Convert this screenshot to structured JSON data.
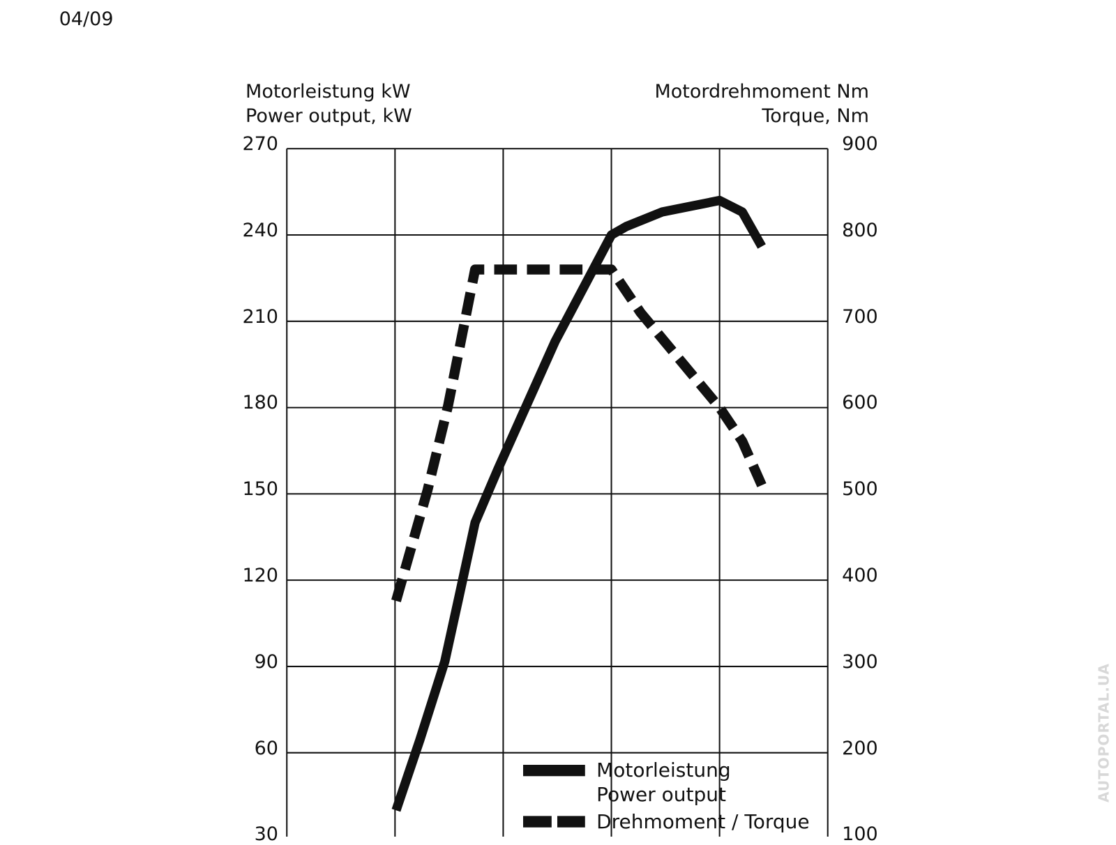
{
  "page_label": "04/09",
  "watermark": "AUTOPORTAL.UA",
  "chart_data": {
    "type": "line",
    "y_axis_title": "Motorleistung kW\nPower output, kW",
    "y2_axis_title": "Motordrehmoment Nm\nTorque, Nm",
    "xlim": [
      0,
      5
    ],
    "xticks": [
      0,
      1,
      2,
      3,
      4,
      5
    ],
    "ylim": [
      30,
      270
    ],
    "yticks": [
      30,
      60,
      90,
      120,
      150,
      180,
      210,
      240,
      270
    ],
    "y2lim": [
      100,
      900
    ],
    "y2ticks": [
      100,
      200,
      300,
      400,
      500,
      600,
      700,
      800,
      900
    ],
    "grid": true,
    "legend": "lower right",
    "series": [
      {
        "name": "Motorleistung\nPower output",
        "color": "#111111",
        "line_style": "solid",
        "axis": "y",
        "x": [
          1.01,
          1.23,
          1.46,
          1.59,
          1.74,
          1.95,
          2.48,
          3.0,
          3.14,
          3.47,
          4.0,
          4.21,
          4.39
        ],
        "values": [
          40,
          64.5,
          91.7,
          114,
          140,
          158.5,
          203,
          240,
          243,
          248,
          252,
          248,
          236
        ]
      },
      {
        "name": "Drehmoment / Torque",
        "color": "#111111",
        "line_style": "dashed",
        "axis": "y2",
        "x": [
          1.01,
          1.3,
          1.49,
          1.74,
          3.0,
          3.27,
          4.0,
          4.21,
          4.39
        ],
        "values": [
          376,
          504,
          602,
          760,
          760,
          710,
          600,
          561,
          510
        ]
      }
    ]
  }
}
